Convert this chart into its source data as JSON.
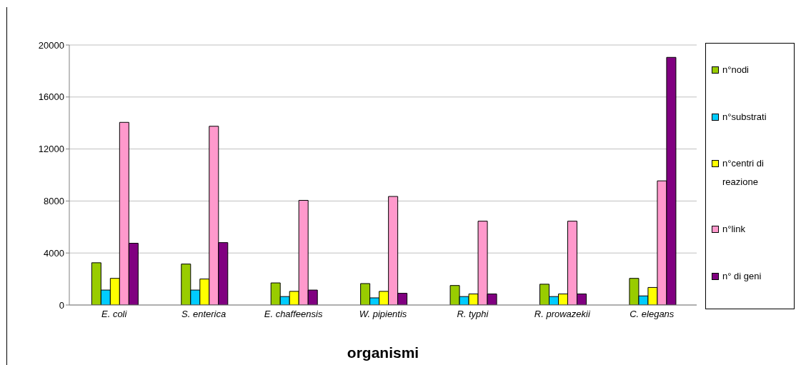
{
  "chart_data": {
    "type": "bar",
    "xlabel": "organismi",
    "categories": [
      "E. coli",
      "S. enterica",
      "E. chaffeensis",
      "W. pipientis",
      "R. typhi",
      "R. prowazekii",
      "C. elegans"
    ],
    "series": [
      {
        "name": "n°nodi",
        "color": "#99cc00",
        "values": [
          3250,
          3150,
          1700,
          1650,
          1500,
          1600,
          2050
        ]
      },
      {
        "name": "n°substrati",
        "color": "#00ccff",
        "values": [
          1150,
          1150,
          650,
          550,
          650,
          650,
          700
        ]
      },
      {
        "name": "n°centri di reazione",
        "color": "#ffff00",
        "values": [
          2050,
          2000,
          1050,
          1050,
          850,
          850,
          1350
        ]
      },
      {
        "name": "n°link",
        "color": "#ff99cc",
        "values": [
          14050,
          13750,
          8050,
          8350,
          6450,
          6450,
          9550
        ]
      },
      {
        "name": "n° di geni",
        "color": "#800080",
        "values": [
          4750,
          4800,
          1150,
          900,
          850,
          850,
          19050
        ]
      }
    ],
    "ylim": [
      0,
      20000
    ],
    "yticks": [
      0,
      4000,
      8000,
      12000,
      16000,
      20000
    ],
    "grid": "y",
    "legend": "right"
  }
}
